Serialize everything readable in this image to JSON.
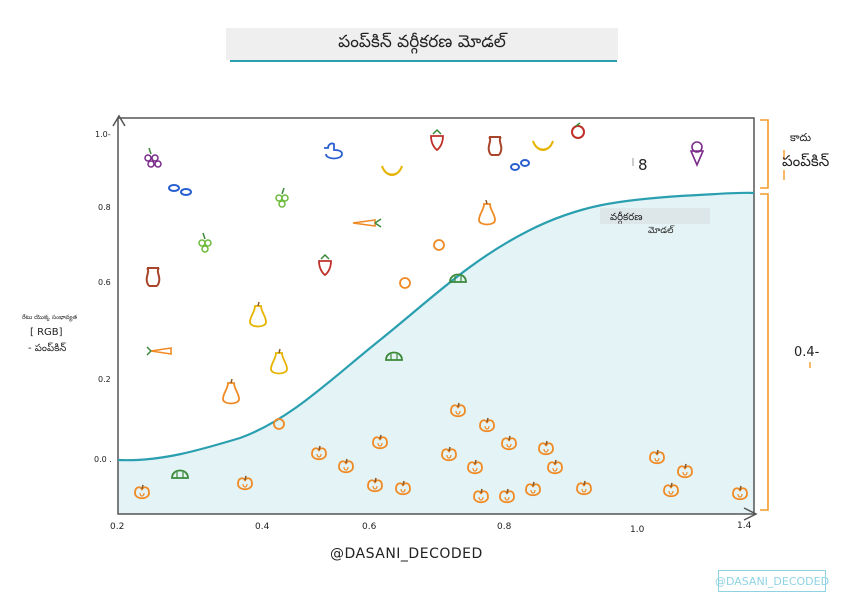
{
  "title": "పంప్‌కిన్ వర్గీకరణ మోడల్",
  "y_axis_title_lines": [
    "రేటు యొక్క సంభావ్యత",
    "[ RGB]",
    "- పంప్‌కిన్"
  ],
  "y_tick_labels": [
    "1.0-",
    "0.8",
    "0.6",
    "0.2",
    "0.0 ."
  ],
  "x_tick_labels": [
    "0.2",
    "0.4",
    "0.6",
    "0.8",
    "1.0",
    "1.4"
  ],
  "legend_top_small": "కాదు",
  "legend_top_big": "పంప్‌కిన్",
  "legend_bottom": "0.4-",
  "curve_label_line1": "వర్గీకరణ",
  "curve_label_line2": "మోడల్",
  "mystery_glyph": "8",
  "footer": "@DASANI_DECODED",
  "watermark": "@DASANI_DECODED",
  "colors": {
    "curve": "#2a9fb0",
    "fill": "#e4f3f5",
    "bracket": "#f39c28",
    "pumpkin": "#f08a24",
    "other_fruit": "#b0302a"
  },
  "icons": {
    "top_region": [
      "grapes-icon",
      "strawberry-icon",
      "duck-icon",
      "bananas-icon",
      "apple-core-icon",
      "apple-icon",
      "ice-cream-icon",
      "chain-icon",
      "carrot-icon",
      "pear-icon",
      "pepper-icon"
    ],
    "bottom_region": [
      "pumpkin-icon",
      "melon-icon"
    ]
  }
}
